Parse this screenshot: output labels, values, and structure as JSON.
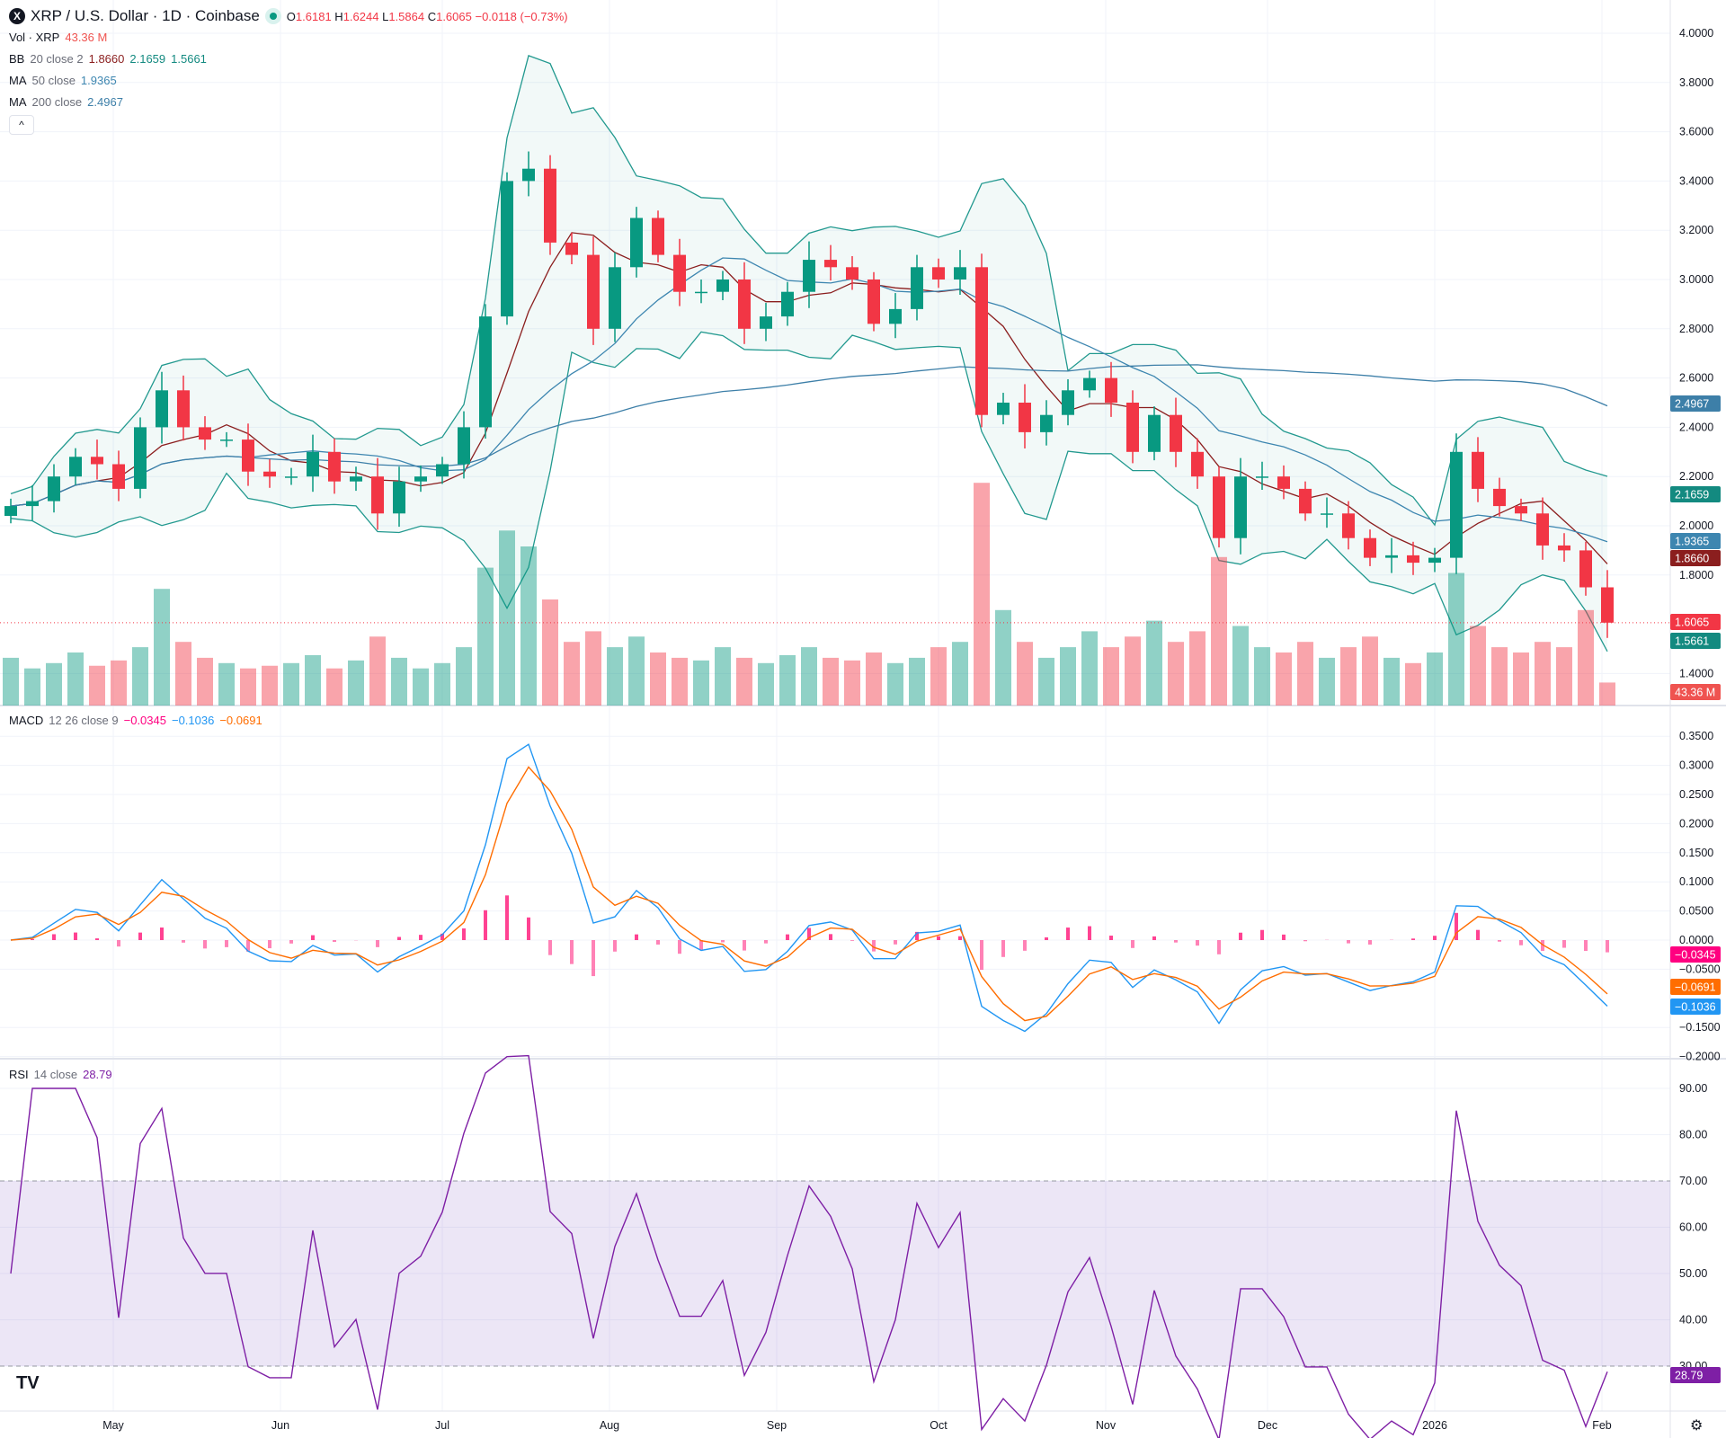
{
  "header": {
    "title": "XRP / U.S. Dollar · 1D · Coinbase",
    "logo_letter": "X",
    "ohlc": {
      "o_label": "O",
      "o": "1.6181",
      "h_label": "H",
      "h": "1.6244",
      "l_label": "L",
      "l": "1.5864",
      "c_label": "C",
      "c": "1.6065",
      "change": "−0.0118 (−0.73%)"
    },
    "collapse_icon": "chevron-up-icon",
    "collapse_glyph": "^"
  },
  "legends": {
    "vol": {
      "label": "Vol · XRP",
      "value": "43.36 M"
    },
    "bb": {
      "label": "BB",
      "params": "20 close 2",
      "basis": "1.8660",
      "upper": "2.1659",
      "lower": "1.5661"
    },
    "ma50": {
      "label": "MA",
      "params": "50 close",
      "value": "1.9365"
    },
    "ma200": {
      "label": "MA",
      "params": "200 close",
      "value": "2.4967"
    },
    "macd": {
      "label": "MACD",
      "params": "12 26 close 9",
      "hist": "−0.0345",
      "macd": "−0.1036",
      "signal": "−0.0691"
    },
    "rsi": {
      "label": "RSI",
      "params": "14 close",
      "value": "28.79"
    }
  },
  "colors": {
    "up": "#089981",
    "down": "#f23645",
    "bb_band": "#22998f",
    "bb_basis": "#8b1e1e",
    "ma50": "#3d86b0",
    "ma200": "#3d7fa8",
    "macd": "#2196f3",
    "signal": "#ff6d00",
    "hist": "#ff2e86",
    "rsi": "#7e1fa5",
    "rsi_band": "#7e57c2",
    "vol_badge": "#ef5350"
  },
  "axes": {
    "price_ticks": [
      "4.0000",
      "3.8000",
      "3.6000",
      "3.4000",
      "3.2000",
      "3.0000",
      "2.8000",
      "2.6000",
      "2.4000",
      "2.2000",
      "2.0000",
      "1.8000",
      "1.4000"
    ],
    "price_badges": [
      {
        "value": "2.4967",
        "color": "#3d7fa8"
      },
      {
        "value": "2.1659",
        "color": "#138a80"
      },
      {
        "value": "1.9365",
        "color": "#3d86b0"
      },
      {
        "value": "1.8660",
        "color": "#8b1e1e"
      },
      {
        "value": "1.6065",
        "color": "#f23645"
      },
      {
        "value": "1.5661",
        "color": "#138a80"
      },
      {
        "value": "43.36 M",
        "color": "#ef5350"
      }
    ],
    "macd_ticks": [
      "0.3500",
      "0.3000",
      "0.2500",
      "0.2000",
      "0.1500",
      "0.1000",
      "0.0500",
      "0.0000",
      "−0.0500",
      "−0.1500",
      "−0.2000"
    ],
    "macd_badges": [
      {
        "value": "−0.0345",
        "color": "#ff0080"
      },
      {
        "value": "−0.0691",
        "color": "#ff6d00"
      },
      {
        "value": "−0.1036",
        "color": "#2196f3"
      }
    ],
    "rsi_ticks": [
      "90.00",
      "80.00",
      "70.00",
      "60.00",
      "50.00",
      "40.00",
      "30.00"
    ],
    "rsi_badge": {
      "value": "28.79",
      "color": "#7e1fa5"
    },
    "time_ticks": [
      "May",
      "Jun",
      "Jul",
      "Aug",
      "Sep",
      "Oct",
      "Nov",
      "Dec",
      "2026",
      "Feb"
    ]
  },
  "footer": {
    "logo_text": "TV",
    "settings_icon": "gear-icon"
  },
  "chart_data": {
    "type": "candlestick",
    "symbol": "XRP / U.S. Dollar",
    "interval": "1D",
    "price_range": [
      1.35,
      4.0
    ],
    "macd_range": [
      -0.2,
      0.35
    ],
    "rsi_range": [
      25,
      92
    ],
    "rsi_bands": [
      30,
      70
    ],
    "grid": true,
    "dates": [
      "2025-04-12",
      "2025-04-16",
      "2025-04-20",
      "2025-04-24",
      "2025-04-28",
      "2025-05-02",
      "2025-05-06",
      "2025-05-10",
      "2025-05-14",
      "2025-05-18",
      "2025-05-22",
      "2025-05-26",
      "2025-05-30",
      "2025-06-03",
      "2025-06-07",
      "2025-06-11",
      "2025-06-15",
      "2025-06-19",
      "2025-06-23",
      "2025-06-27",
      "2025-07-01",
      "2025-07-05",
      "2025-07-09",
      "2025-07-13",
      "2025-07-17",
      "2025-07-21",
      "2025-07-25",
      "2025-07-29",
      "2025-08-02",
      "2025-08-06",
      "2025-08-10",
      "2025-08-14",
      "2025-08-18",
      "2025-08-22",
      "2025-08-26",
      "2025-08-30",
      "2025-09-03",
      "2025-09-07",
      "2025-09-11",
      "2025-09-15",
      "2025-09-19",
      "2025-09-23",
      "2025-09-27",
      "2025-10-01",
      "2025-10-05",
      "2025-10-09",
      "2025-10-13",
      "2025-10-17",
      "2025-10-21",
      "2025-10-25",
      "2025-10-29",
      "2025-11-02",
      "2025-11-06",
      "2025-11-10",
      "2025-11-14",
      "2025-11-18",
      "2025-11-22",
      "2025-11-26",
      "2025-11-30",
      "2025-12-04",
      "2025-12-08",
      "2025-12-12",
      "2025-12-16",
      "2025-12-20",
      "2025-12-24",
      "2025-12-28",
      "2026-01-01",
      "2026-01-05",
      "2026-01-09",
      "2026-01-13",
      "2026-01-17",
      "2026-01-21",
      "2026-01-25",
      "2026-01-29",
      "2026-02-02"
    ],
    "close": [
      2.08,
      2.1,
      2.2,
      2.28,
      2.25,
      2.15,
      2.4,
      2.55,
      2.4,
      2.35,
      2.35,
      2.22,
      2.2,
      2.2,
      2.3,
      2.18,
      2.2,
      2.05,
      2.18,
      2.2,
      2.25,
      2.4,
      2.85,
      3.4,
      3.45,
      3.15,
      3.1,
      2.8,
      3.05,
      3.25,
      3.1,
      2.95,
      2.95,
      3.0,
      2.8,
      2.85,
      2.95,
      3.08,
      3.05,
      3.0,
      2.82,
      2.88,
      3.05,
      3.0,
      3.05,
      2.45,
      2.5,
      2.38,
      2.45,
      2.55,
      2.6,
      2.5,
      2.3,
      2.45,
      2.3,
      2.2,
      1.95,
      2.2,
      2.2,
      2.15,
      2.05,
      2.05,
      1.95,
      1.87,
      1.88,
      1.85,
      1.87,
      2.3,
      2.15,
      2.08,
      2.05,
      1.92,
      1.9,
      1.75,
      1.6065
    ],
    "volume_millions": [
      90,
      70,
      80,
      100,
      75,
      85,
      110,
      220,
      120,
      90,
      80,
      70,
      75,
      80,
      95,
      70,
      85,
      130,
      90,
      70,
      80,
      110,
      260,
      330,
      300,
      200,
      120,
      140,
      110,
      130,
      100,
      90,
      85,
      110,
      90,
      80,
      95,
      110,
      90,
      85,
      100,
      80,
      90,
      110,
      120,
      420,
      180,
      120,
      90,
      110,
      140,
      110,
      130,
      160,
      120,
      140,
      280,
      150,
      110,
      100,
      120,
      90,
      110,
      130,
      90,
      80,
      100,
      250,
      150,
      110,
      100,
      120,
      110,
      180,
      43.36
    ]
  }
}
